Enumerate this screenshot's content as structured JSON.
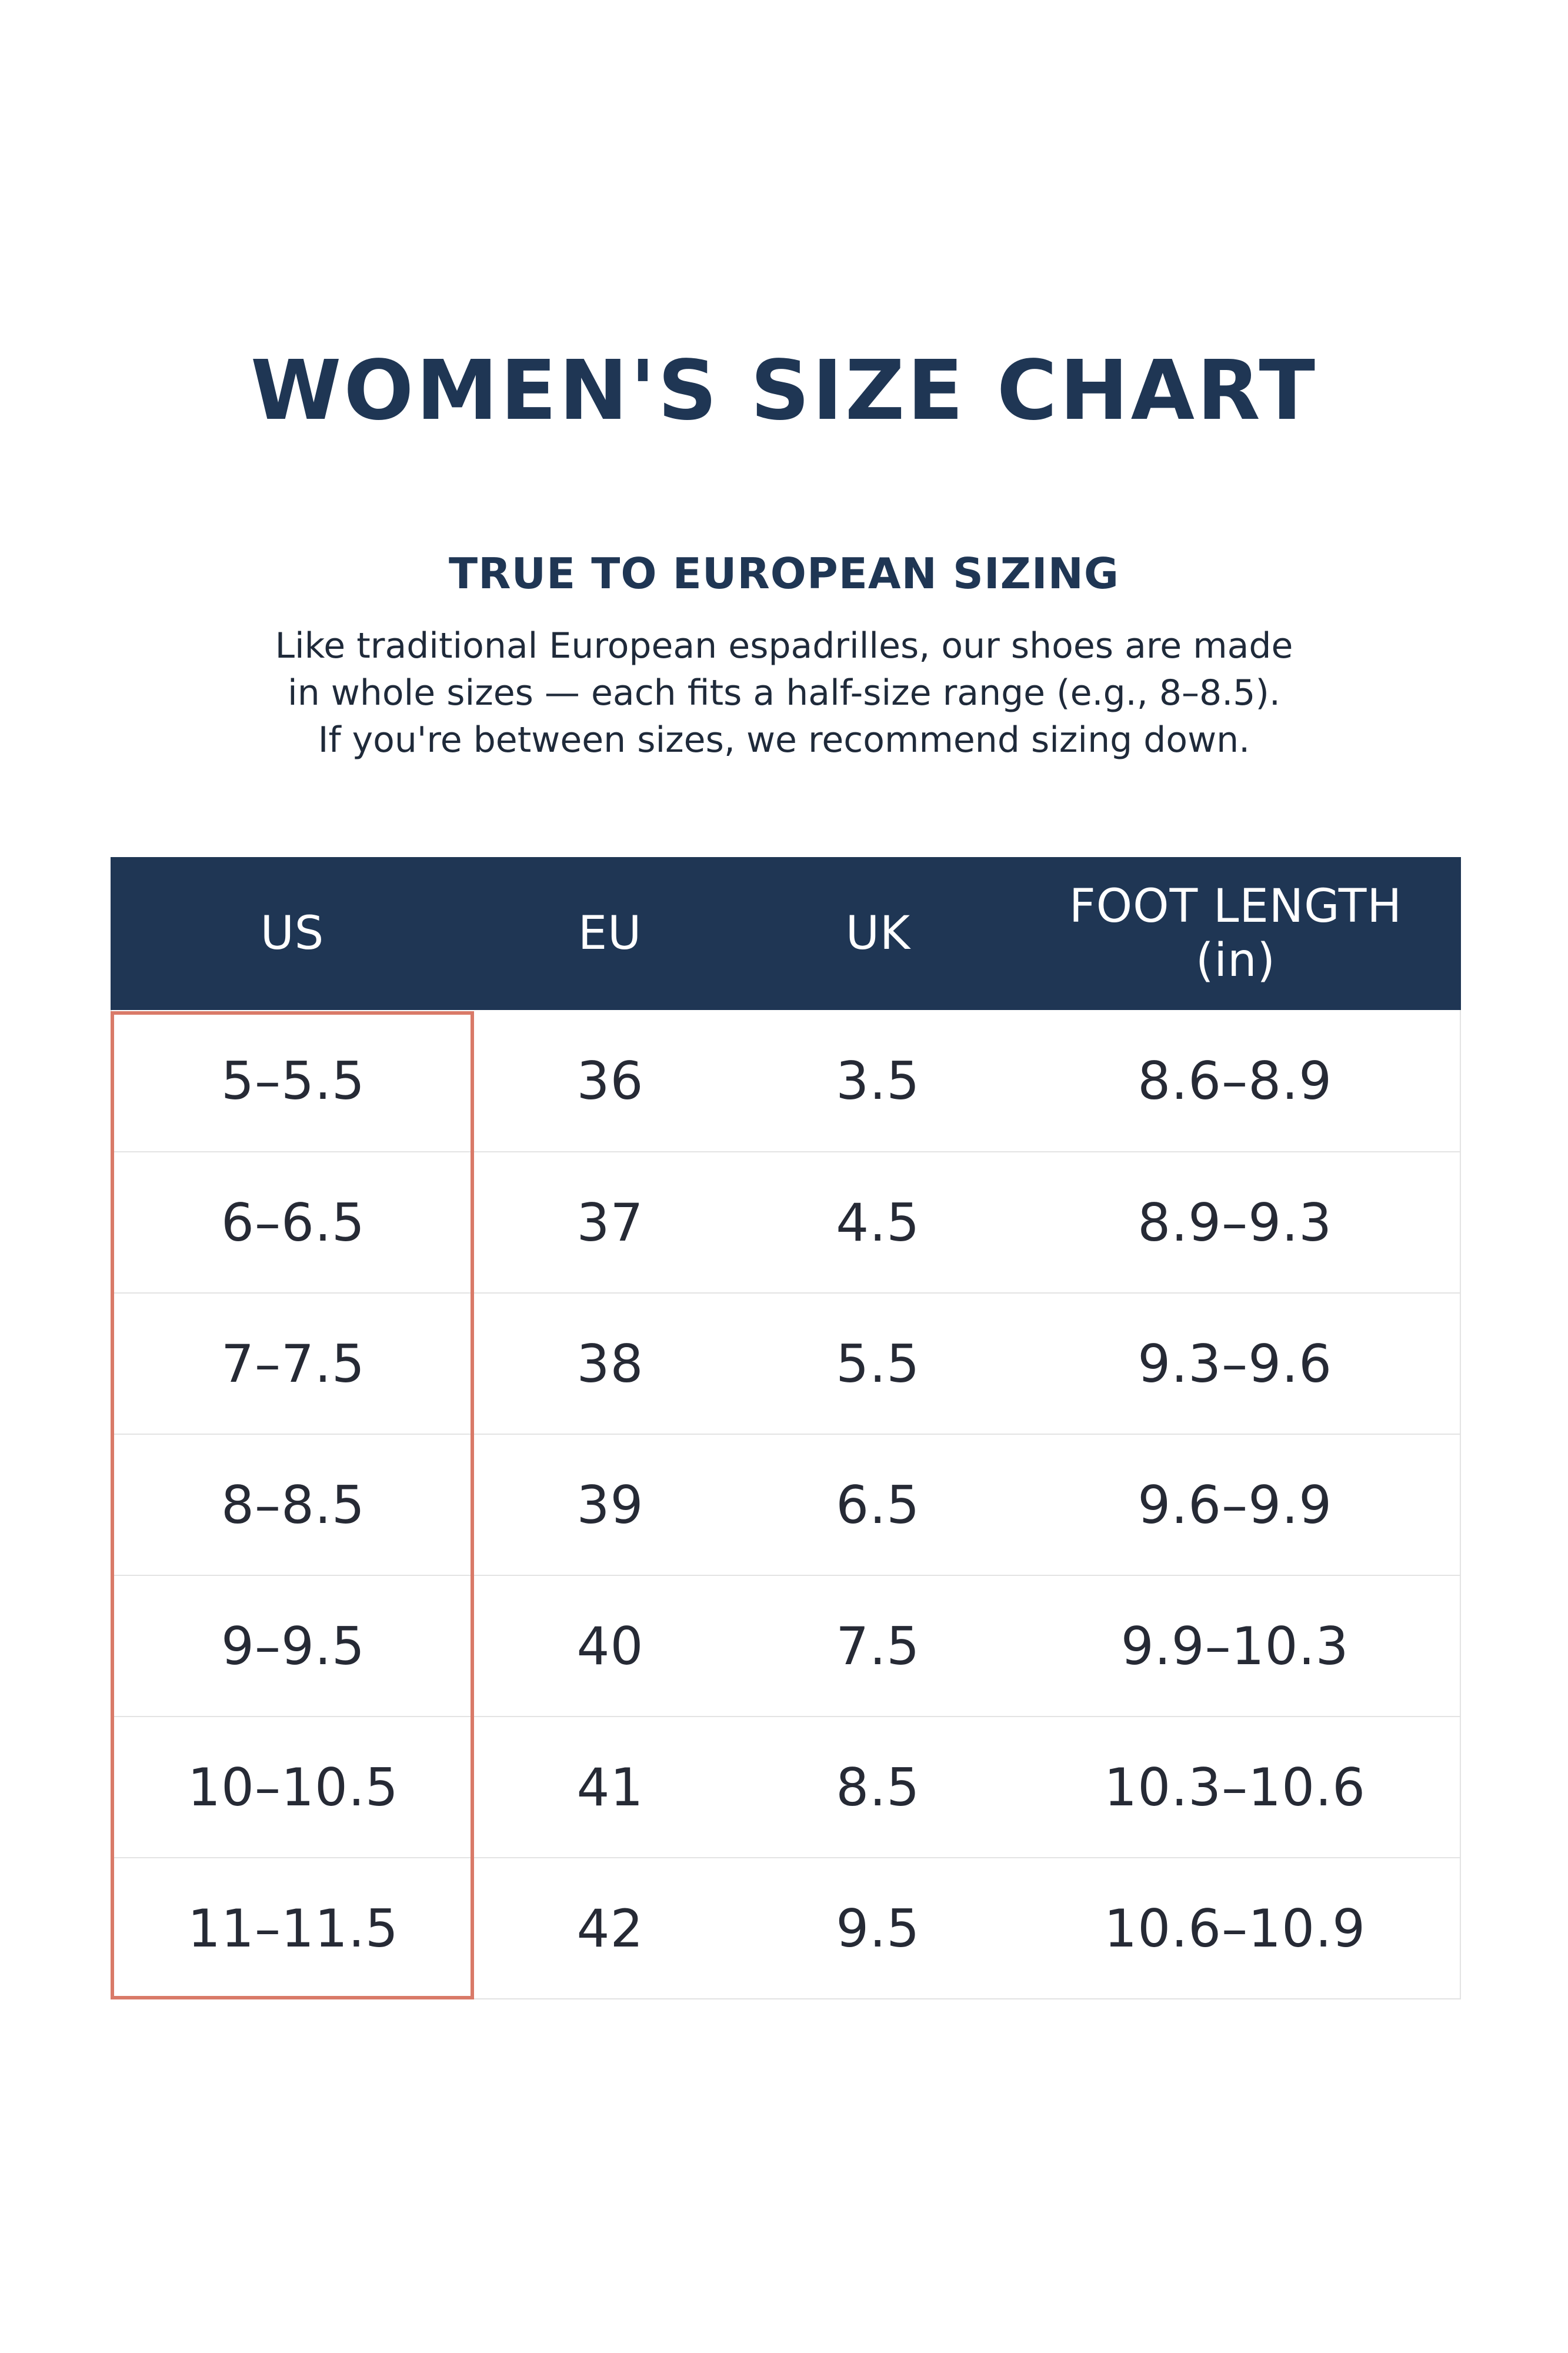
{
  "header": {
    "title": "WOMEN'S SIZE CHART",
    "subtitle": "TRUE TO EUROPEAN SIZING",
    "intro_lines": [
      "Like traditional European espadrilles, our shoes are made",
      "in whole sizes — each fits a half-size range (e.g., 8–8.5).",
      "If you're between sizes, we recommend sizing down."
    ]
  },
  "table": {
    "columns": [
      "US",
      "EU",
      "UK"
    ],
    "foot_length_header": [
      "FOOT LENGTH",
      "(in)"
    ],
    "rows": [
      [
        "5–5.5",
        "36",
        "3.5",
        "8.6–8.9"
      ],
      [
        "6–6.5",
        "37",
        "4.5",
        "8.9–9.3"
      ],
      [
        "7–7.5",
        "38",
        "5.5",
        "9.3–9.6"
      ],
      [
        "8–8.5",
        "39",
        "6.5",
        "9.6–9.9"
      ],
      [
        "9–9.5",
        "40",
        "7.5",
        "9.9–10.3"
      ],
      [
        "10–10.5",
        "41",
        "8.5",
        "10.3–10.6"
      ],
      [
        "11–11.5",
        "42",
        "9.5",
        "10.6–10.9"
      ]
    ]
  },
  "colors": {
    "header_background": "#1f3654",
    "title_text": "#1f3654",
    "highlight_border": "#d97a68",
    "grid_line": "#e3e3e3"
  }
}
